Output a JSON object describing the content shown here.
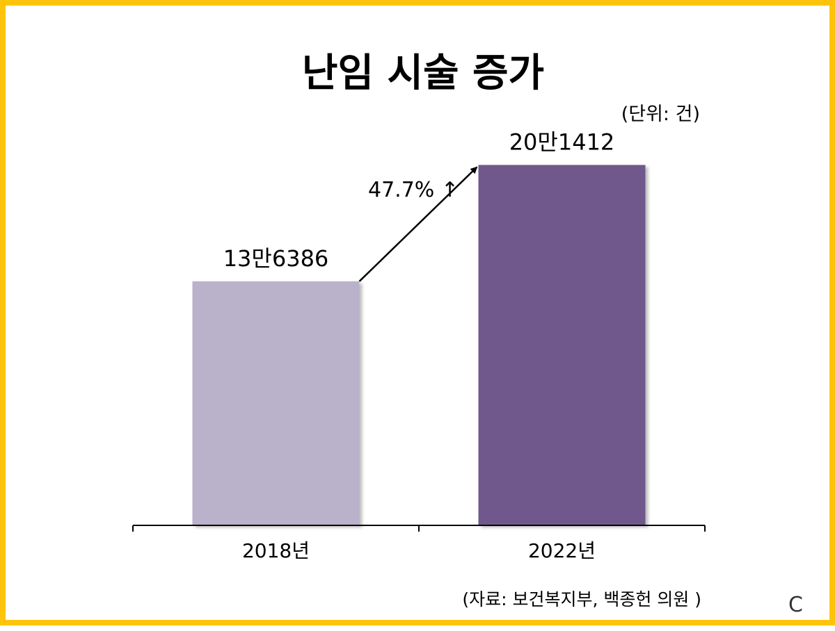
{
  "slide": {
    "title": "난임 시술 증가",
    "unit_note": "(단위: 건)",
    "source_note": "(자료: 보건복지부, 백종헌 의원 )",
    "corner_mark": "C",
    "border_color": "#fec40b"
  },
  "chart_data": {
    "type": "bar",
    "title": "난임 시술 증가",
    "categories": [
      "2018년",
      "2022년"
    ],
    "values": [
      136386,
      201412
    ],
    "data_labels": [
      "13만6386",
      "20만1412"
    ],
    "bar_colors": [
      "#bab1cb",
      "#6f588c"
    ],
    "annotation": {
      "text": "47.7% ↑",
      "from_category": 0,
      "to_category": 1,
      "style": "arrow"
    },
    "ylim": [
      0,
      240000
    ],
    "grid": false,
    "legend": "none",
    "xlabel": "",
    "ylabel": ""
  }
}
